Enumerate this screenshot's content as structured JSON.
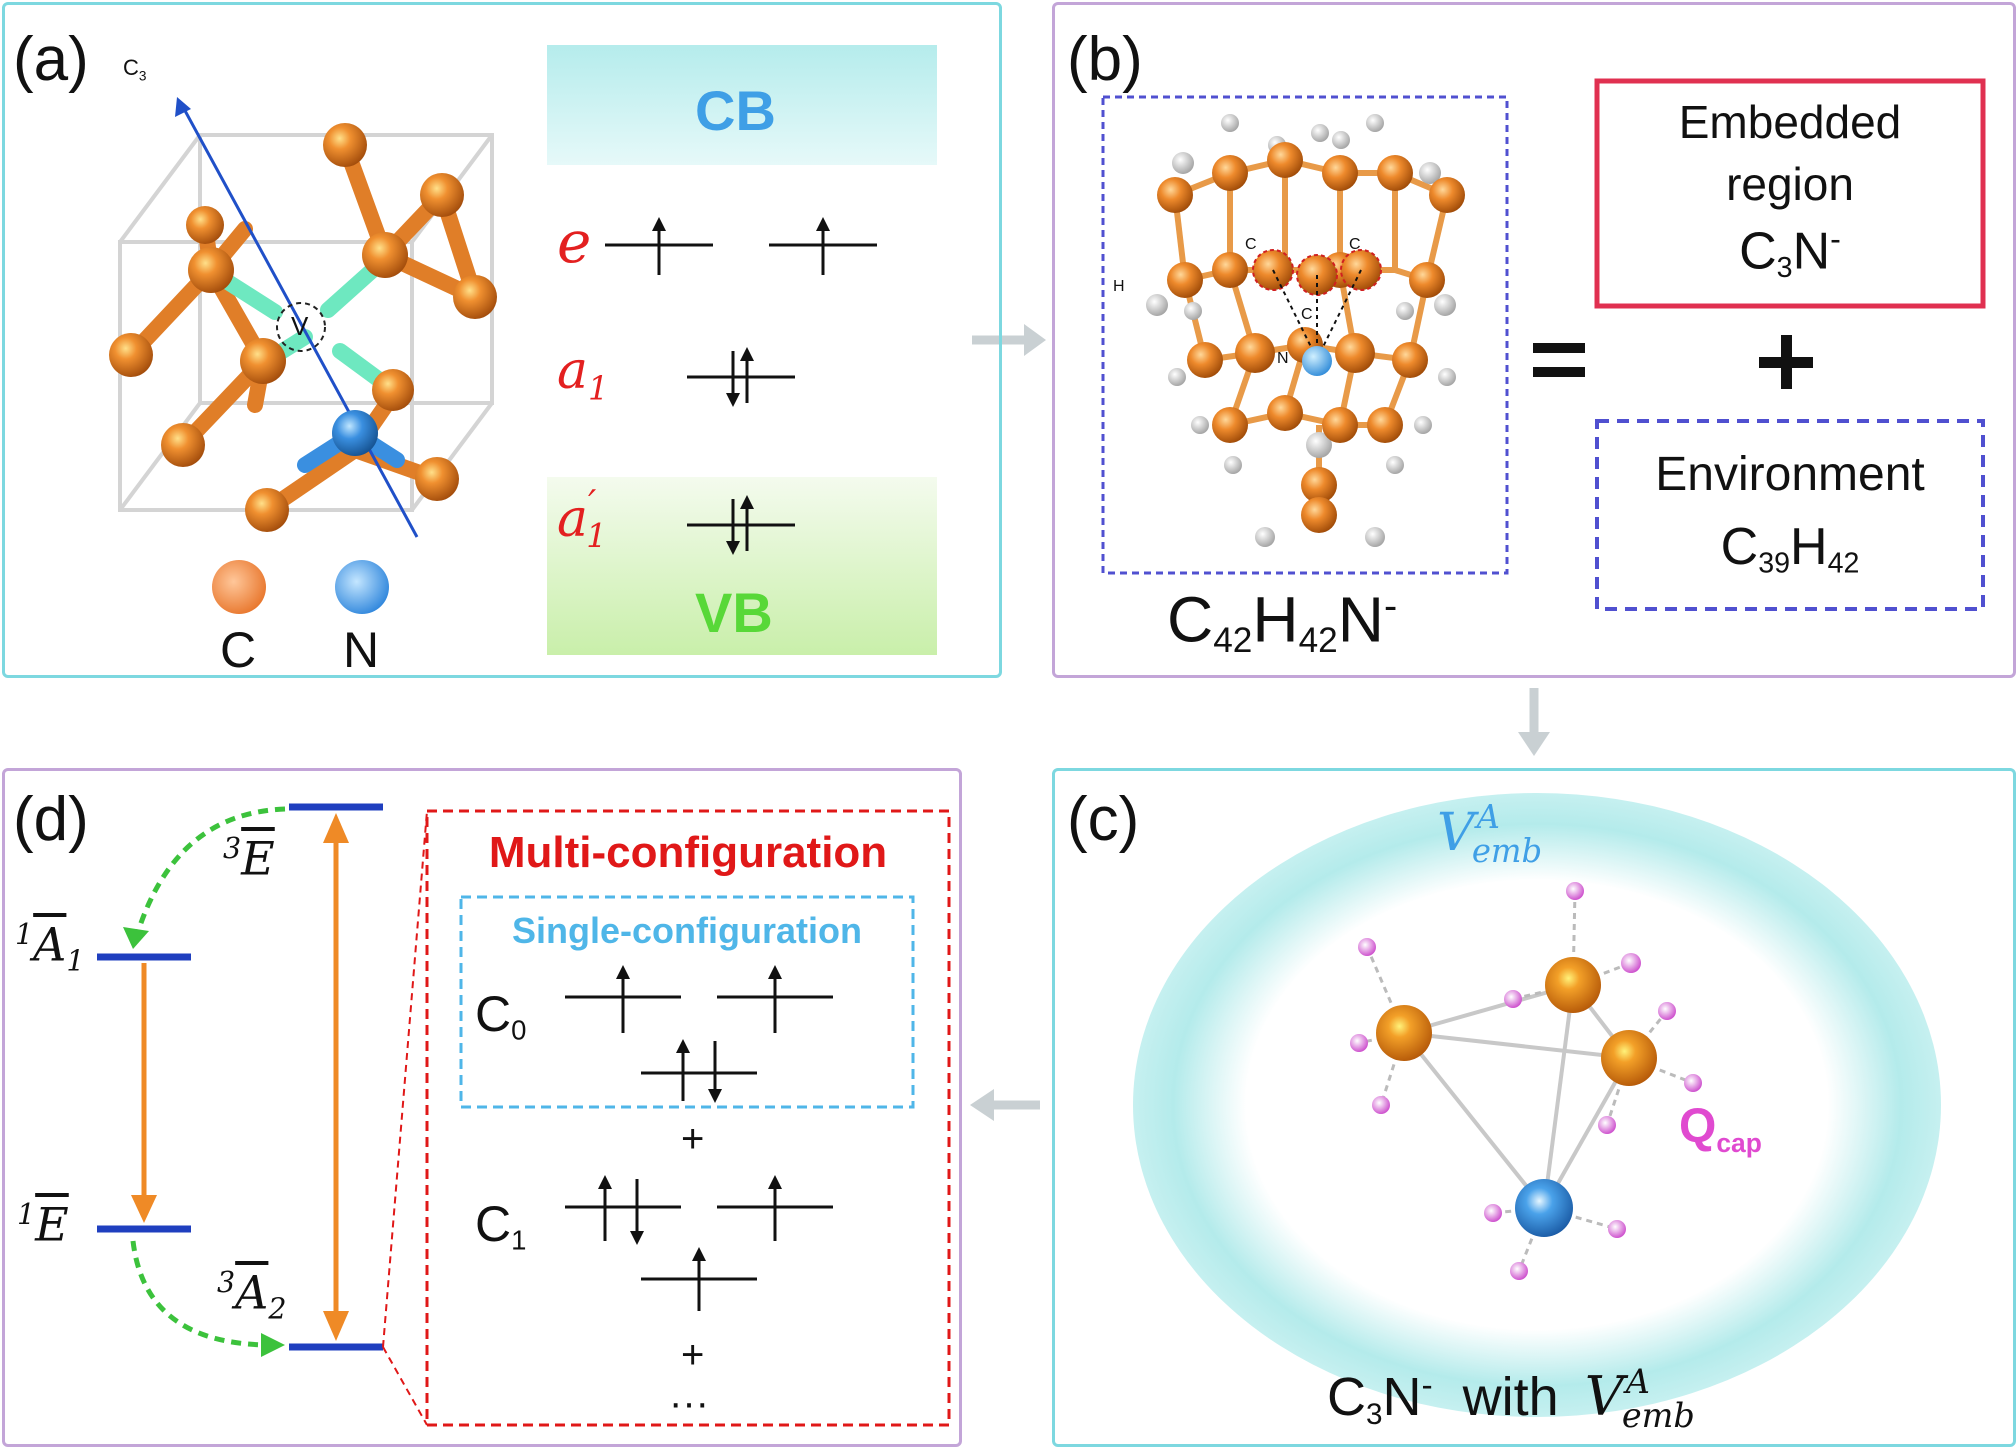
{
  "panel_a": {
    "label": "(a)",
    "axis_label": "C",
    "axis_label_sub": "3",
    "vacancy_label": "V",
    "legend": {
      "carbon": "C",
      "nitrogen": "N"
    },
    "cb_label": "CB",
    "vb_label": "VB",
    "levels": {
      "e": "e",
      "a1": "a",
      "a1_sub": "1",
      "a1p": "a",
      "a1p_sup": "′",
      "a1p_sub": "1"
    },
    "colors": {
      "carbon": "#e8842c",
      "nitrogen": "#3a8fe0",
      "bond_green": "#6ee8c0",
      "cb_fill": "#c8eef0",
      "vb_fill": "#d8f2c2",
      "cb_text": "#3f9fe6",
      "vb_text": "#58d838",
      "level_text": "#e32020"
    }
  },
  "panel_b": {
    "label": "(b)",
    "cluster_formula": {
      "c": "C",
      "c_sub": "42",
      "h": "H",
      "h_sub": "42",
      "n": "N",
      "charge": "-"
    },
    "atom_labels": {
      "c_left": "C",
      "c_right": "C",
      "c_center": "C",
      "n": "N",
      "h": "H"
    },
    "equals": "=",
    "plus": "+",
    "embedded": {
      "line1": "Embedded",
      "line2": "region",
      "formula_c": "C",
      "formula_c_sub": "3",
      "formula_n": "N",
      "formula_charge": "-"
    },
    "environment": {
      "line1": "Environment",
      "formula_c": "C",
      "formula_c_sub": "39",
      "formula_h": "H",
      "formula_h_sub": "42"
    }
  },
  "panel_c": {
    "label": "(c)",
    "vemb": {
      "v": "V",
      "sup": "A",
      "sub": "emb"
    },
    "qcap": {
      "q": "Q",
      "sub": "cap"
    },
    "caption": {
      "c": "C",
      "c_sub": "3",
      "n": "N",
      "charge": "-",
      "with": "with",
      "v": "V",
      "sup": "A",
      "sub": "emb"
    }
  },
  "panel_d": {
    "label": "(d)",
    "states": {
      "e3": {
        "pre": "3",
        "sym": "E"
      },
      "a1": {
        "pre": "1",
        "sym": "A",
        "sub": "1"
      },
      "e1": {
        "pre": "1",
        "sym": "E"
      },
      "a2": {
        "pre": "3",
        "sym": "A",
        "sub": "2"
      }
    },
    "multi_title": "Multi-configuration",
    "single_title": "Single-configuration",
    "c0": {
      "c": "C",
      "sub": "0"
    },
    "c1": {
      "c": "C",
      "sub": "1"
    },
    "plus": "+",
    "ellipsis": "···",
    "colors": {
      "level": "#1f3fbf",
      "arrow": "#ef8a26",
      "dashed_arrow": "#3cc23c",
      "multi": "#e01818",
      "single": "#4fb6e8"
    }
  }
}
